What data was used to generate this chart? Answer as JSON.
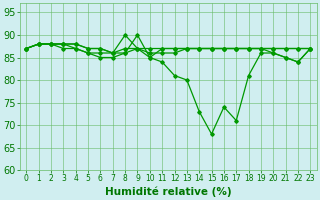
{
  "title": "",
  "xlabel": "Humidité relative (%)",
  "ylabel": "",
  "xlim": [
    -0.5,
    23.5
  ],
  "ylim": [
    60,
    97
  ],
  "yticks": [
    60,
    65,
    70,
    75,
    80,
    85,
    90,
    95
  ],
  "xticks": [
    0,
    1,
    2,
    3,
    4,
    5,
    6,
    7,
    8,
    9,
    10,
    11,
    12,
    13,
    14,
    15,
    16,
    17,
    18,
    19,
    20,
    21,
    22,
    23
  ],
  "background_color": "#d0eef0",
  "grid_color": "#66bb66",
  "line_color": "#009900",
  "lines": [
    [
      87,
      88,
      88,
      88,
      88,
      87,
      87,
      86,
      86,
      90,
      85,
      87,
      87,
      87,
      87,
      87,
      87,
      87,
      87,
      87,
      86,
      85,
      84,
      87
    ],
    [
      87,
      88,
      88,
      88,
      87,
      86,
      86,
      86,
      87,
      87,
      85,
      84,
      81,
      80,
      73,
      68,
      74,
      71,
      81,
      86,
      86,
      85,
      84,
      87
    ],
    [
      87,
      88,
      88,
      87,
      87,
      86,
      85,
      85,
      86,
      87,
      87,
      87,
      87,
      87,
      87,
      87,
      87,
      87,
      87,
      87,
      87,
      87,
      87,
      87
    ],
    [
      87,
      88,
      88,
      88,
      88,
      87,
      87,
      86,
      90,
      87,
      86,
      86,
      86,
      87,
      87,
      87,
      87,
      87,
      87,
      87,
      87,
      87,
      87,
      87
    ]
  ],
  "line_width": 0.9,
  "marker": "D",
  "marker_size": 1.8,
  "font_color": "#007700",
  "ytick_fontsize": 7,
  "xtick_fontsize": 5.5,
  "xlabel_fontsize": 7.5,
  "xlabel_fontweight": "bold"
}
